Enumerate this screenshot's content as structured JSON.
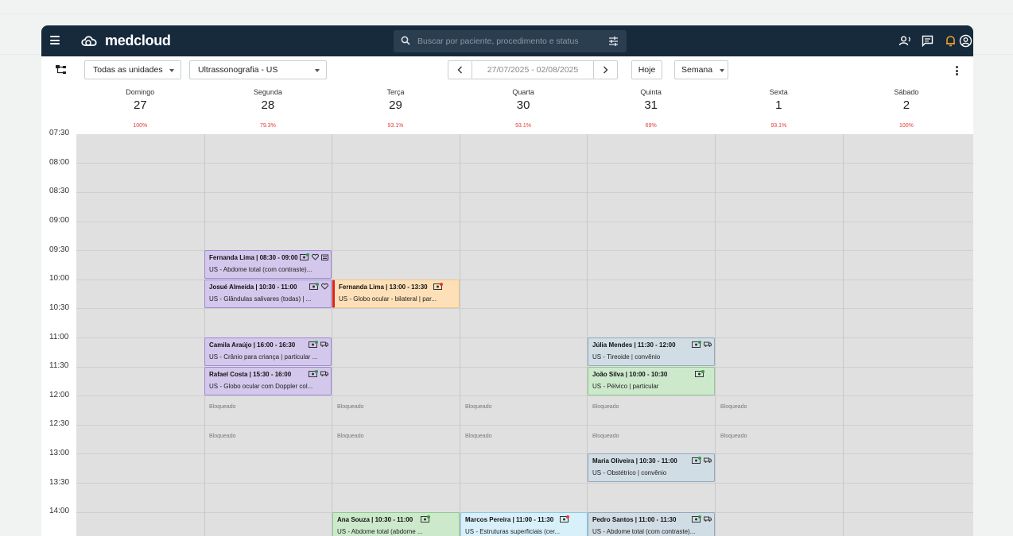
{
  "app": {
    "brand": "medcloud"
  },
  "search": {
    "placeholder": "Buscar por paciente, procedimento e status"
  },
  "toolbar": {
    "unit_select": "Todas as unidades",
    "modality_select": "Ultrassonografia - US",
    "date_range": "27/07/2025 - 02/08/2025",
    "today_label": "Hoje",
    "view_select": "Semana"
  },
  "days": [
    {
      "name": "Domingo",
      "num": "27",
      "occupancy": "100%"
    },
    {
      "name": "Segunda",
      "num": "28",
      "occupancy": "79.3%"
    },
    {
      "name": "Terça",
      "num": "29",
      "occupancy": "93.1%"
    },
    {
      "name": "Quarta",
      "num": "30",
      "occupancy": "93.1%"
    },
    {
      "name": "Quinta",
      "num": "31",
      "occupancy": "69%"
    },
    {
      "name": "Sexta",
      "num": "1",
      "occupancy": "93.1%"
    },
    {
      "name": "Sábado",
      "num": "2",
      "occupancy": "100%"
    }
  ],
  "times": [
    "07:30",
    "08:00",
    "08:30",
    "09:00",
    "09:30",
    "10:00",
    "10:30",
    "11:00",
    "11:30",
    "12:00",
    "12:30",
    "13:00",
    "13:30",
    "14:00"
  ],
  "blocked_label": "Bloqueado",
  "events": [
    {
      "title": "Fernanda Lima | 08:30 - 09:00",
      "sub": "US - Abdome total (com contraste)..."
    },
    {
      "title": "Josué Almeida | 10:30 - 11:00",
      "sub": "US - Glândulas salivares (todas) | ..."
    },
    {
      "title": "Fernanda Lima | 13:00 - 13:30",
      "sub": "US - Globo ocular - bilateral | par..."
    },
    {
      "title": "Camila Araújo | 16:00 - 16:30",
      "sub": "US - Crânio para criança | particular ..."
    },
    {
      "title": "Rafael Costa | 15:30 - 16:00",
      "sub": "US - Globo ocular com Doppler col..."
    },
    {
      "title": "Júlia Mendes | 11:30 - 12:00",
      "sub": "US - Tireoide | convênio"
    },
    {
      "title": "João Silva | 10:00 - 10:30",
      "sub": "US - Pélvico | particular"
    },
    {
      "title": "Maria Oliveira | 10:30 - 11:00",
      "sub": "US - Obstétrico | convênio"
    },
    {
      "title": "Ana Souza | 10:30 - 11:00",
      "sub": "US - Abdome total (abdome ..."
    },
    {
      "title": "Marcos Pereira | 11:00 - 11:30",
      "sub": "US - Estruturas superficiais (cer..."
    },
    {
      "title": "Pedro Santos | 11:00 - 11:30",
      "sub": "US - Abdome total (com contraste)..."
    }
  ],
  "colors": {
    "topbar": "#162a3c",
    "accent_bell": "#f5a623",
    "occupancy": "#e53935",
    "event_purple": "#d3c7ec",
    "event_orange": "#fde0b8",
    "event_green": "#cde9cc",
    "event_blue": "#d1dde5",
    "event_cyan": "#d8f0fa"
  }
}
